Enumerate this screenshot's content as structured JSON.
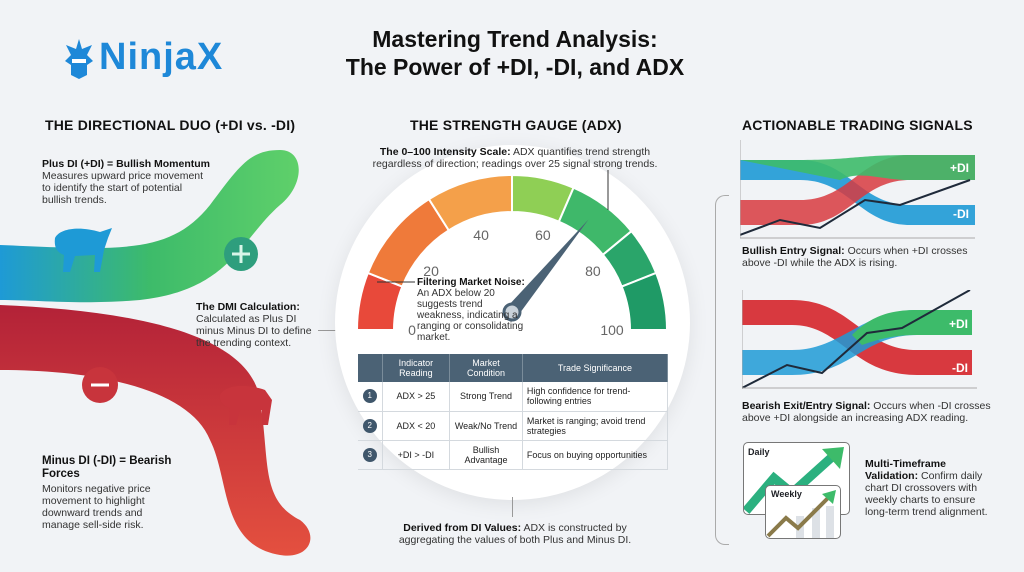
{
  "brand": {
    "logo_text": "NinjaX",
    "color": "#1e88d8"
  },
  "title": {
    "line1": "Mastering Trend Analysis:",
    "line2": "The Power of +DI, -DI, and ADX"
  },
  "left": {
    "heading": "THE DIRECTIONAL DUO (+DI vs. -DI)",
    "plus_title": "Plus DI (+DI) = Bullish Momentum",
    "plus_text": "Measures upward price movement to identify the start of potential bullish trends.",
    "dmi_title": "The DMI Calculation:",
    "dmi_text": "Calculated as Plus DI minus Minus DI to define the trending context.",
    "minus_title": "Minus DI (-DI) = Bearish Forces",
    "minus_text": "Monitors negative price movement to highlight downward trends and manage sell-side risk.",
    "icons": [
      "bull-icon",
      "plus-icon",
      "minus-icon",
      "bear-icon"
    ]
  },
  "center": {
    "heading": "THE STRENGTH GAUGE (ADX)",
    "scale_title": "The 0–100 Intensity Scale:",
    "scale_text": "ADX quantifies trend strength regardless of direction; readings over 25 signal strong trends.",
    "ticks": [
      "0",
      "20",
      "40",
      "60",
      "80",
      "100"
    ],
    "needle_value": 72,
    "noise_title": "Filtering Market Noise:",
    "noise_text": "An ADX below 20 suggests trend weakness, indicating a ranging or consolidating market.",
    "table": {
      "headers": [
        "Indicator Reading",
        "Market Condition",
        "Trade Significance"
      ],
      "rows": [
        {
          "n": "1",
          "reading": "ADX > 25",
          "condition": "Strong Trend",
          "significance": "High confidence for trend-following entries"
        },
        {
          "n": "2",
          "reading": "ADX < 20",
          "condition": "Weak/No Trend",
          "significance": "Market is ranging; avoid trend strategies"
        },
        {
          "n": "3",
          "reading": "+DI > -DI",
          "condition": "Bullish Advantage",
          "significance": "Focus on buying opportunities"
        }
      ]
    },
    "derived_title": "Derived from DI Values:",
    "derived_text": "ADX is constructed by aggregating the values of both Plus and Minus DI."
  },
  "right": {
    "heading": "ACTIONABLE TRADING SIGNALS",
    "plus_label": "+DI",
    "minus_label": "-DI",
    "bull_title": "Bullish Entry Signal:",
    "bull_text": "Occurs when +DI crosses above -DI while the ADX is rising.",
    "bear_title": "Bearish Exit/Entry Signal:",
    "bear_text": "Occurs when -DI crosses above +DI alongside an increasing ADX reading.",
    "daily_label": "Daily",
    "weekly_label": "Weekly",
    "mtf_title": "Multi-Timeframe Validation:",
    "mtf_text": "Confirm daily chart DI crossovers with weekly charts to ensure long-term trend alignment."
  },
  "colors": {
    "green": "#3dbb6a",
    "red": "#d8393f",
    "blue": "#1e9ad6",
    "slate": "#4b6275"
  }
}
